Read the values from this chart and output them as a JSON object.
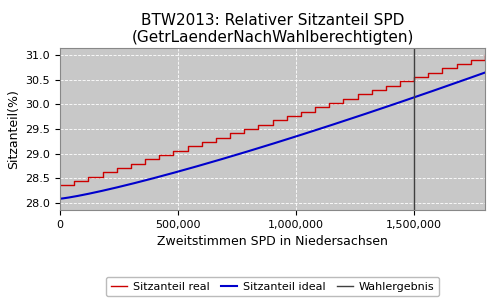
{
  "title": "BTW2013: Relativer Sitzanteil SPD\n(GetrLaenderNachWahlberechtigten)",
  "xlabel": "Zweitstimmen SPD in Niedersachsen",
  "ylabel": "Sitzanteil(%)",
  "xlim": [
    0,
    1800000
  ],
  "ylim": [
    27.85,
    31.15
  ],
  "yticks": [
    28.0,
    28.5,
    29.0,
    29.5,
    30.0,
    30.5,
    31.0
  ],
  "xticks": [
    0,
    500000,
    1000000,
    1500000
  ],
  "wahlergebnis_x": 1500000,
  "fig_bg_color": "#ffffff",
  "plot_bg_color": "#c8c8c8",
  "grid_color": "#ffffff",
  "line_real_color": "#cc0000",
  "line_ideal_color": "#0000cc",
  "line_wahlerg_color": "#404040",
  "x_end": 1800000,
  "n_steps": 30,
  "ideal_start_y": 28.08,
  "ideal_end_y": 30.65,
  "real_start_y": 28.35,
  "real_end_y": 31.0,
  "title_fontsize": 11,
  "label_fontsize": 9,
  "tick_fontsize": 8,
  "legend_fontsize": 8
}
